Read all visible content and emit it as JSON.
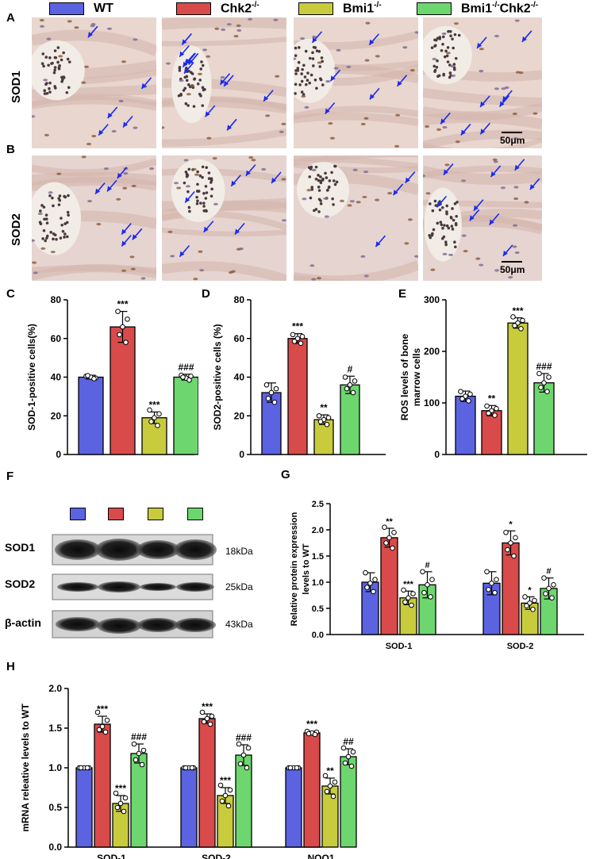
{
  "legend": [
    {
      "name": "WT",
      "color": "#5b63e0"
    },
    {
      "name": "Chk2",
      "sup": "-/-",
      "color": "#d94a4a"
    },
    {
      "name": "Bmi1",
      "sup": "-/-",
      "color": "#c8cc3c"
    },
    {
      "name": "Bmi1",
      "sup": "-/-",
      "name2": "Chk2",
      "sup2": "-/-",
      "color": "#6ed66e"
    }
  ],
  "panel_labels": {
    "A": "A",
    "B": "B",
    "C": "C",
    "D": "D",
    "E": "E",
    "F": "F",
    "G": "G",
    "H": "H"
  },
  "micro": {
    "row1": "SOD1",
    "row2": "SOD2",
    "scale1": "50μm",
    "scale2": "50μm"
  },
  "western": {
    "rows": [
      {
        "protein": "SOD1",
        "size": "18kDa"
      },
      {
        "protein": "SOD2",
        "size": "25kDa"
      },
      {
        "protein": "β-actin",
        "size": "43kDa"
      }
    ]
  },
  "chart_data": [
    {
      "id": "C",
      "type": "bar",
      "ylabel": "SOD-1-positive cells(%)",
      "ylim": [
        0,
        80
      ],
      "yticks": [
        0,
        20,
        40,
        60,
        80
      ],
      "groups": [
        ""
      ],
      "values": [
        [
          40,
          66,
          19,
          40
        ]
      ],
      "errors": [
        [
          1,
          8,
          3,
          1.5
        ]
      ],
      "points": [
        [
          [
            40.5,
            39.5,
            40,
            40.8,
            39.2
          ]
        ],
        [
          [
            74,
            70,
            66,
            62,
            58
          ]
        ],
        [
          [
            23,
            21,
            19,
            17,
            15
          ]
        ],
        [
          [
            41,
            40.5,
            39.5,
            40,
            38.5
          ]
        ]
      ],
      "stars": [
        [
          "",
          "***",
          "***",
          "###"
        ]
      ]
    },
    {
      "id": "D",
      "type": "bar",
      "ylabel": "SOD2-positive cells (%)",
      "ylim": [
        0,
        80
      ],
      "yticks": [
        0,
        20,
        40,
        60,
        80
      ],
      "groups": [
        ""
      ],
      "values": [
        [
          32,
          60,
          18,
          36
        ]
      ],
      "errors": [
        [
          5,
          2.5,
          2.5,
          4.5
        ]
      ],
      "points": [
        [
          [
            36,
            34,
            32,
            29,
            27
          ]
        ],
        [
          [
            62,
            61,
            60,
            58.5,
            57.5
          ]
        ],
        [
          [
            20,
            19,
            18,
            17,
            15.5
          ]
        ],
        [
          [
            40,
            38,
            36,
            34,
            32
          ]
        ]
      ],
      "stars": [
        [
          "",
          "***",
          "**",
          "#"
        ]
      ]
    },
    {
      "id": "E",
      "type": "bar",
      "ylabel": "ROS levels of bone marrow cells",
      "ylim": [
        0,
        300
      ],
      "yticks": [
        0,
        100,
        200,
        300
      ],
      "groups": [
        ""
      ],
      "values": [
        [
          113,
          85,
          255,
          139
        ]
      ],
      "errors": [
        [
          10,
          10,
          10,
          18
        ]
      ],
      "points": [
        [
          [
            122,
            117,
            113,
            108,
            104
          ]
        ],
        [
          [
            94,
            89,
            85,
            80,
            76
          ]
        ],
        [
          [
            267,
            260,
            255,
            250,
            244
          ]
        ],
        [
          [
            157,
            150,
            139,
            130,
            122
          ]
        ]
      ],
      "stars": [
        [
          "",
          "**",
          "***",
          "###"
        ]
      ]
    },
    {
      "id": "G",
      "type": "bar",
      "ylabel": "Relative protein expression levels to WT",
      "ylim": [
        0,
        2.5
      ],
      "yticks": [
        "0.0",
        "0.5",
        "1.0",
        "1.5",
        "2.0",
        "2.5"
      ],
      "groups": [
        "SOD-1",
        "SOD-2"
      ],
      "values": [
        [
          1.0,
          1.85,
          0.7,
          0.95
        ],
        [
          0.98,
          1.75,
          0.6,
          0.88
        ]
      ],
      "errors": [
        [
          0.18,
          0.18,
          0.13,
          0.25
        ],
        [
          0.22,
          0.23,
          0.12,
          0.2
        ]
      ],
      "points": [
        [
          [
            1.18,
            1.05,
            0.98,
            0.9,
            0.82
          ],
          [
            2.05,
            1.95,
            1.85,
            1.75,
            1.65
          ],
          [
            0.85,
            0.78,
            0.7,
            0.62,
            0.56
          ],
          [
            1.2,
            1.05,
            0.95,
            0.8,
            0.72
          ]
        ],
        [
          [
            1.2,
            1.05,
            0.98,
            0.86,
            0.8
          ],
          [
            1.95,
            1.85,
            1.75,
            1.62,
            1.5
          ],
          [
            0.72,
            0.65,
            0.6,
            0.55,
            0.48
          ],
          [
            1.08,
            0.95,
            0.88,
            0.78,
            0.7
          ]
        ]
      ],
      "stars": [
        [
          "",
          "**",
          "***",
          "#"
        ],
        [
          "",
          "*",
          "*",
          "#"
        ]
      ]
    },
    {
      "id": "H",
      "type": "bar",
      "ylabel": "mRNA releative levels to WT",
      "ylim": [
        0,
        2.0
      ],
      "yticks": [
        "0.0",
        "0.5",
        "1.0",
        "1.5",
        "2.0"
      ],
      "groups": [
        "SOD-1",
        "SOD-2",
        "NQO1"
      ],
      "values": [
        [
          1.0,
          1.55,
          0.55,
          1.18
        ],
        [
          1.0,
          1.62,
          0.65,
          1.16
        ],
        [
          1.0,
          1.44,
          0.77,
          1.14
        ]
      ],
      "errors": [
        [
          0.01,
          0.1,
          0.1,
          0.12
        ],
        [
          0.01,
          0.06,
          0.1,
          0.13
        ],
        [
          0.01,
          0.02,
          0.1,
          0.1
        ]
      ],
      "points": [
        [
          [
            1.0,
            1.0,
            1.0,
            1.0,
            1.0
          ],
          [
            1.7,
            1.6,
            1.52,
            1.48,
            1.45
          ],
          [
            0.68,
            0.62,
            0.55,
            0.5,
            0.45
          ],
          [
            1.3,
            1.22,
            1.18,
            1.1,
            1.04
          ]
        ],
        [
          [
            1.0,
            1.0,
            1.0,
            1.0,
            1.0
          ],
          [
            1.7,
            1.65,
            1.62,
            1.58,
            1.55
          ],
          [
            0.78,
            0.72,
            0.65,
            0.58,
            0.52
          ],
          [
            1.3,
            1.25,
            1.16,
            1.05,
            1.0
          ]
        ],
        [
          [
            1.0,
            1.0,
            1.0,
            1.0,
            1.0
          ],
          [
            1.46,
            1.45,
            1.44,
            1.43,
            1.42
          ],
          [
            0.9,
            0.82,
            0.77,
            0.7,
            0.64
          ],
          [
            1.25,
            1.2,
            1.14,
            1.06,
            1.02
          ]
        ]
      ],
      "stars": [
        [
          "",
          "***",
          "***",
          "###"
        ],
        [
          "",
          "***",
          "***",
          "###"
        ],
        [
          "",
          "***",
          "**",
          "##"
        ]
      ]
    }
  ]
}
